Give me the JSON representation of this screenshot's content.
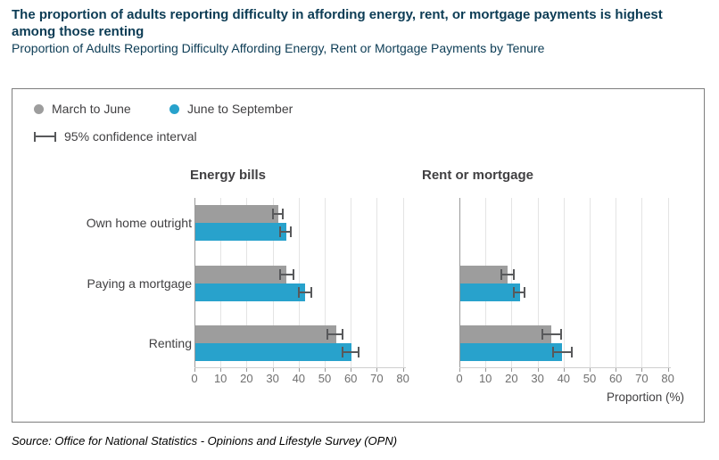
{
  "header": {
    "title": "The proportion of adults reporting difficulty in affording energy, rent, or mortgage payments is highest among those renting",
    "subtitle": "Proportion of Adults Reporting Difficulty Affording Energy, Rent or Mortgage Payments by Tenure"
  },
  "legend": {
    "series": [
      {
        "label": "March to June",
        "color": "#9d9d9d"
      },
      {
        "label": "June to September",
        "color": "#28a2cc"
      }
    ],
    "ci_label": "95% confidence interval"
  },
  "chart_data": {
    "type": "bar",
    "orientation": "horizontal",
    "categories": [
      "Own home outright",
      "Paying a mortgage",
      "Renting"
    ],
    "x_ticks": [
      0,
      10,
      20,
      30,
      40,
      50,
      60,
      70,
      80
    ],
    "xlim": [
      0,
      85
    ],
    "xlabel": "Proportion (%)",
    "grid": true,
    "legend_position": "top-left",
    "panels": [
      {
        "title": "Energy bills",
        "series": [
          {
            "name": "March to June",
            "values": [
              32,
              35,
              54
            ],
            "ci_low": [
              30,
              33,
              51
            ],
            "ci_high": [
              34,
              38,
              57
            ]
          },
          {
            "name": "June to September",
            "values": [
              35,
              42,
              60
            ],
            "ci_low": [
              33,
              40,
              57
            ],
            "ci_high": [
              37,
              45,
              63
            ]
          }
        ]
      },
      {
        "title": "Rent or mortgage",
        "series": [
          {
            "name": "March to June",
            "values": [
              null,
              18,
              35
            ],
            "ci_low": [
              null,
              16,
              32
            ],
            "ci_high": [
              null,
              21,
              39
            ]
          },
          {
            "name": "June to September",
            "values": [
              null,
              23,
              39
            ],
            "ci_low": [
              null,
              21,
              36
            ],
            "ci_high": [
              null,
              25,
              43
            ]
          }
        ]
      }
    ]
  },
  "source": "Source: Office for National Statistics - Opinions and Lifestyle Survey (OPN)"
}
